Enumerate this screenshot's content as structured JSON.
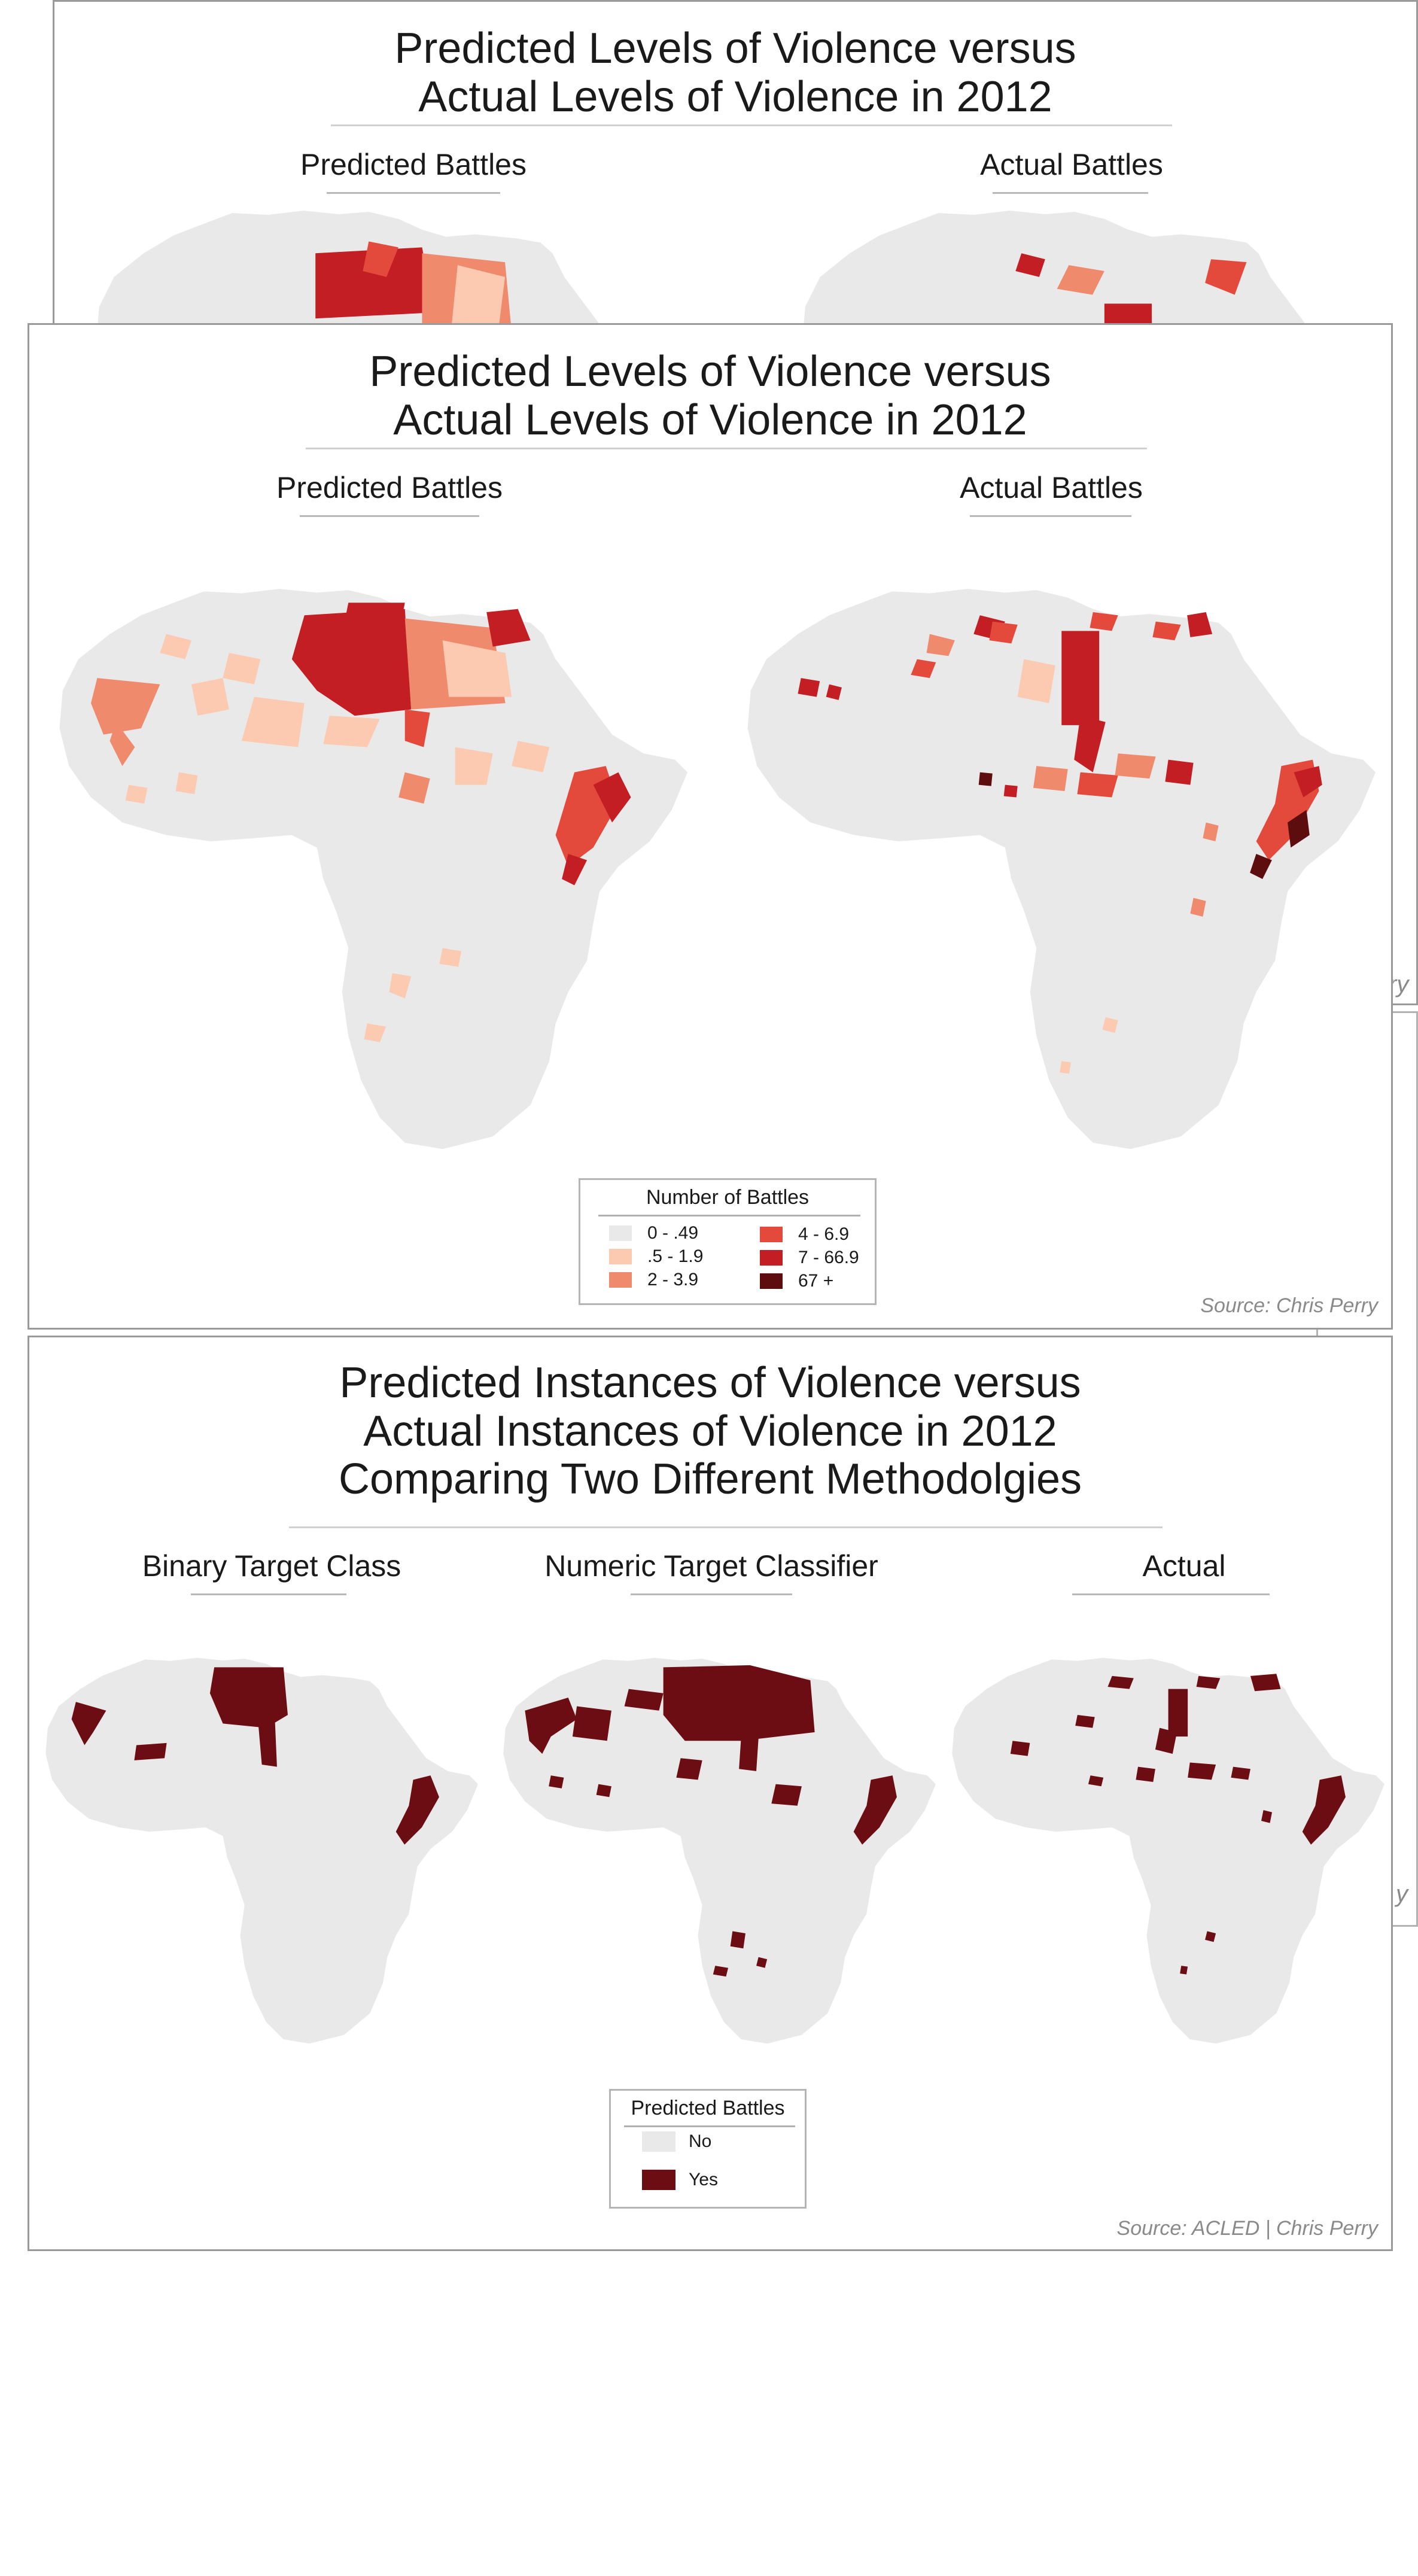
{
  "colors": {
    "land": "#e9e9e9",
    "scale": [
      "#e9e9e9",
      "#fbcab0",
      "#f08a6c",
      "#e34a3b",
      "#c21e24",
      "#5e0d0f"
    ],
    "binary_no": "#e9e9e9",
    "binary_yes": "#6b0d12"
  },
  "panel_back": {
    "title_line1": "Predicted Levels of Violence versus",
    "title_line2": "Actual Levels of Violence in 2012",
    "left_label": "Predicted Battles",
    "right_label": "Actual Battles",
    "edge_fragment": "ry"
  },
  "panel_middle_ghost": {
    "edge_fragment": "y"
  },
  "panel_front": {
    "title_line1": "Predicted Levels of Violence versus",
    "title_line2": "Actual Levels of Violence in 2012",
    "left_label": "Predicted Battles",
    "right_label": "Actual Battles",
    "legend": {
      "title": "Number of Battles",
      "items": [
        {
          "label": "0 - .49"
        },
        {
          "label": ".5 - 1.9"
        },
        {
          "label": "2 - 3.9"
        },
        {
          "label": "4 - 6.9"
        },
        {
          "label": "7 - 66.9"
        },
        {
          "label": "67 +"
        }
      ]
    },
    "source": "Source: Chris Perry"
  },
  "panel_bottom": {
    "title_line1": "Predicted Instances of Violence versus",
    "title_line2": "Actual Instances of Violence in 2012",
    "title_line3": "Comparing Two Different Methodolgies",
    "labels": [
      "Binary Target Class",
      "Numeric Target Classifier",
      "Actual"
    ],
    "legend": {
      "title": "Predicted Battles",
      "items": [
        {
          "label": "No"
        },
        {
          "label": "Yes"
        }
      ]
    },
    "source": "Source: ACLED | Chris Perry"
  }
}
